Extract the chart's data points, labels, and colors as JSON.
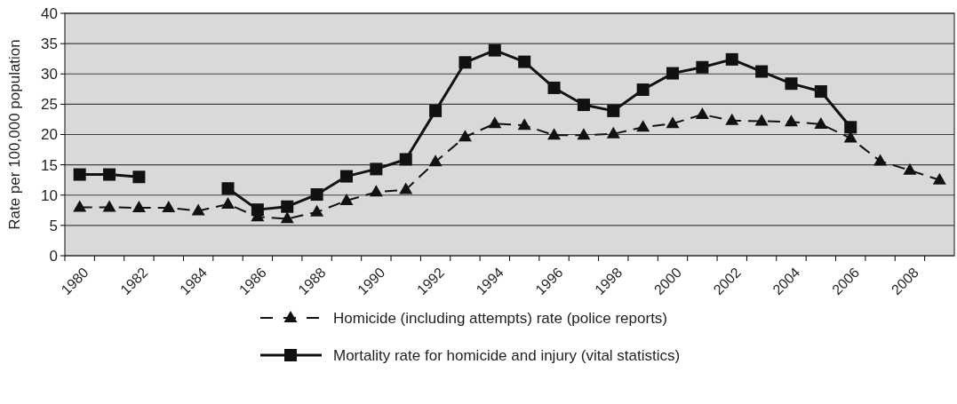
{
  "chart_data": {
    "type": "line",
    "ylabel": "Rate per 100,000 population",
    "categories": [
      "1980",
      null,
      "1982",
      null,
      "1984",
      null,
      "1986",
      null,
      "1988",
      null,
      "1990",
      null,
      "1992",
      null,
      "1994",
      null,
      "1996",
      null,
      "1998",
      null,
      "2000",
      null,
      "2002",
      null,
      "2004",
      null,
      "2006",
      null,
      "2008",
      null
    ],
    "series": [
      {
        "name": "Homicide (including attempts) rate (police reports)",
        "color": "#111111",
        "marker": "triangle",
        "line_style": "dashed",
        "values": [
          8,
          8,
          7.9,
          7.9,
          7.4,
          8.5,
          6.4,
          6.1,
          7.2,
          9.1,
          10.5,
          10.9,
          15.5,
          19.6,
          21.8,
          21.5,
          19.9,
          19.9,
          20.1,
          21.2,
          21.8,
          23.3,
          22.3,
          22.2,
          22.1,
          21.7,
          19.4,
          15.6,
          14.1,
          12.5
        ]
      },
      {
        "name": "Mortality rate for homicide and injury (vital statistics)",
        "color": "#111111",
        "marker": "square",
        "line_style": "solid",
        "values": [
          13.4,
          13.4,
          13,
          null,
          null,
          11.1,
          7.6,
          8.1,
          10.1,
          13.1,
          14.3,
          15.9,
          23.9,
          31.9,
          33.9,
          32,
          27.7,
          24.9,
          23.9,
          27.4,
          30.1,
          31.1,
          32.4,
          30.4,
          28.4,
          27.1,
          21.2,
          null,
          null,
          null
        ]
      }
    ],
    "ylim": [
      0,
      40
    ],
    "yticks": [
      0,
      5,
      10,
      15,
      20,
      25,
      30,
      35,
      40
    ],
    "grid": "y",
    "legend": "bottom"
  }
}
